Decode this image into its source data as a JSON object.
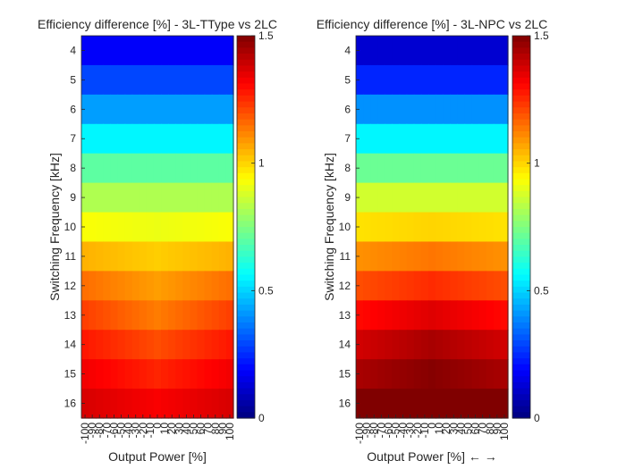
{
  "chart_data": [
    {
      "type": "heatmap",
      "title": "Efficiency difference [%] - 3L-TType vs 2LC",
      "xlabel": "Output Power [%]",
      "ylabel": "Switching Frequency [kHz]",
      "x": [
        -100,
        -90,
        -80,
        -70,
        -60,
        -50,
        -40,
        -30,
        -20,
        -10,
        0,
        10,
        20,
        30,
        40,
        50,
        60,
        70,
        80,
        90,
        100
      ],
      "y": [
        4,
        5,
        6,
        7,
        8,
        9,
        10,
        11,
        12,
        13,
        14,
        15,
        16
      ],
      "clim": [
        0,
        1.5
      ],
      "colorbar_ticks": [
        0,
        0.5,
        1,
        1.5
      ],
      "colorbar_tick_labels": [
        "0",
        "0.5",
        "1",
        "1.5"
      ],
      "colormap": "jet",
      "row_base": [
        0.18,
        0.29,
        0.42,
        0.55,
        0.7,
        0.82,
        0.93,
        1.05,
        1.15,
        1.22,
        1.28,
        1.33,
        1.37
      ],
      "center_dip": [
        0,
        0,
        0,
        0,
        0,
        0,
        0.02,
        0.04,
        0.07,
        0.09,
        0.08,
        0.07,
        0.05
      ],
      "values_note": "value(row, x) = row_base[row] - center_dip[row] * (1 - |x|/100)"
    },
    {
      "type": "heatmap",
      "title": "Efficiency difference [%] - 3L-NPC vs 2LC",
      "xlabel": "Output Power [%] ← →",
      "ylabel": "Switching Frequency [kHz]",
      "x": [
        -100,
        -90,
        -80,
        -70,
        -60,
        -50,
        -40,
        -30,
        -20,
        -10,
        0,
        10,
        20,
        30,
        40,
        50,
        60,
        70,
        80,
        90,
        100
      ],
      "y": [
        4,
        5,
        6,
        7,
        8,
        9,
        10,
        11,
        12,
        13,
        14,
        15,
        16
      ],
      "clim": [
        0,
        1.5
      ],
      "colorbar_ticks": [
        0,
        0.5,
        1,
        1.5
      ],
      "colorbar_tick_labels": [
        "0",
        "0.5",
        "1",
        "1.5"
      ],
      "colormap": "jet",
      "row_base": [
        0.12,
        0.24,
        0.4,
        0.55,
        0.72,
        0.87,
        0.98,
        1.1,
        1.2,
        1.3,
        1.38,
        1.44,
        1.5
      ],
      "center_bump": [
        0,
        0,
        0,
        0,
        0,
        0,
        0.02,
        0.04,
        0.05,
        0.06,
        0.06,
        0.05,
        0.03
      ],
      "values_note": "value(row, x) = row_base[row] + center_bump[row] * (1 - |x|/100)"
    }
  ]
}
